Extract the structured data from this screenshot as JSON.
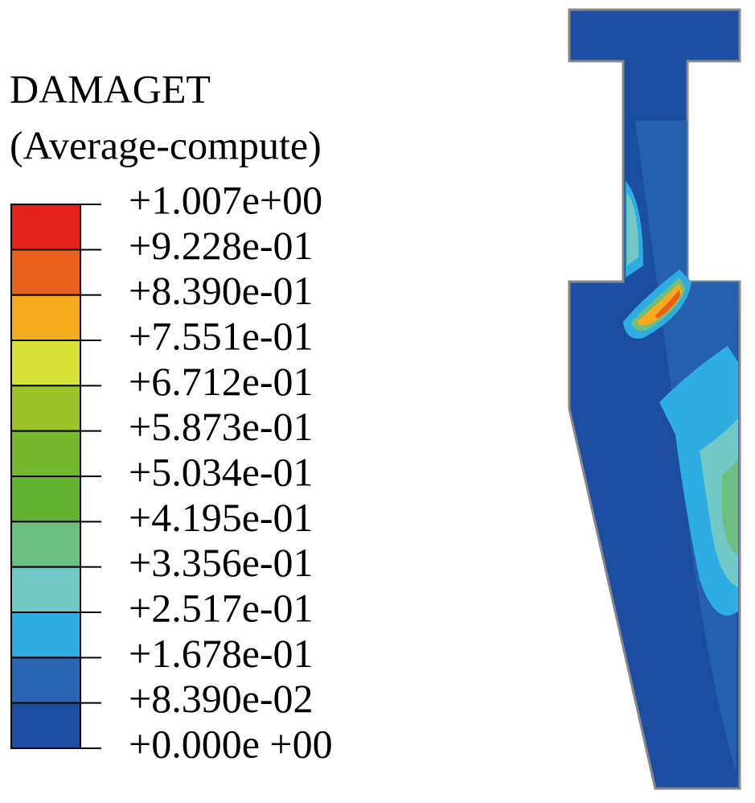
{
  "legend": {
    "title": "DAMAGET",
    "subtitle": "(Average-compute)",
    "labels": [
      "+1.007e+00",
      "+9.228e-01",
      "+8.390e-01",
      "+7.551e-01",
      "+6.712e-01",
      "+5.873e-01",
      "+5.034e-01",
      "+4.195e-01",
      "+3.356e-01",
      "+2.517e-01",
      "+1.678e-01",
      "+8.390e-02",
      "+0.000e +00"
    ],
    "colors": [
      "#e3201b",
      "#e8601c",
      "#f5ab1c",
      "#d8e236",
      "#9cc428",
      "#76b82b",
      "#62b130",
      "#6dbf80",
      "#71c8c6",
      "#2eade3",
      "#2a66b3",
      "#1b4ea1"
    ]
  }
}
